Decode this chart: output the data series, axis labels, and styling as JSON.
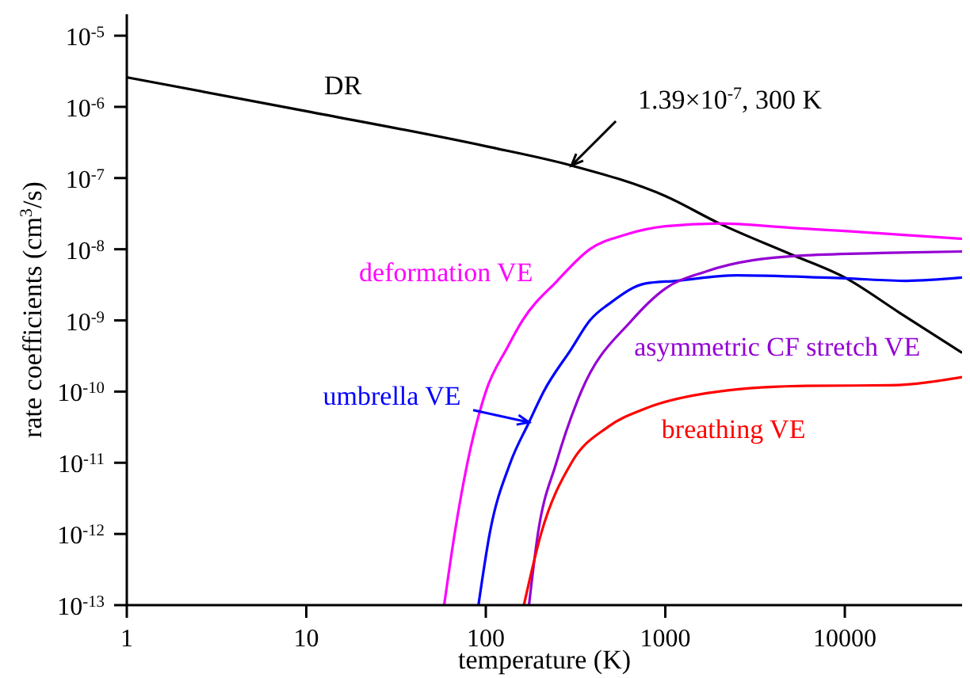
{
  "chart_data": {
    "type": "line",
    "xlabel": "temperature (K)",
    "ylabel": "rate coefficients (cm$^{3}$/s)",
    "log": "xy",
    "marker": "none",
    "line_style": "solid",
    "xlim": [
      1,
      45000
    ],
    "xticks": [
      1,
      10,
      100,
      1000,
      10000
    ],
    "ylim": [
      1e-13,
      2e-05
    ],
    "yticks": [
      {
        "value": 1e-13,
        "label": "10$^{-13}$"
      },
      {
        "value": 1e-12,
        "label": "10$^{-12}$"
      },
      {
        "value": 1e-11,
        "label": "10$^{-11}$"
      },
      {
        "value": 1e-10,
        "label": "10$^{-10}$"
      },
      {
        "value": 1e-09,
        "label": "10$^{-9}$"
      },
      {
        "value": 1e-08,
        "label": "10$^{-8}$"
      },
      {
        "value": 1e-07,
        "label": "10$^{-7}$"
      },
      {
        "value": 1e-06,
        "label": "10$^{-6}$"
      },
      {
        "value": 1e-05,
        "label": "10$^{-5}$"
      }
    ],
    "series": [
      {
        "name": "DR",
        "color": "#000000",
        "x": [
          1,
          10,
          100,
          300,
          1000,
          2000,
          5000,
          10000,
          20000,
          45000
        ],
        "values": [
          2.6e-06,
          8.7e-07,
          2.8e-07,
          1.5e-07,
          5.6e-08,
          2.3e-08,
          8.5e-09,
          4e-09,
          1.3e-09,
          3.5e-10
        ]
      },
      {
        "name": "deformation VE",
        "color": "#ff00ff",
        "x": [
          58.6,
          67,
          79,
          100,
          132,
          160,
          250,
          380,
          600,
          1000,
          2000,
          5000,
          10000,
          45000
        ],
        "values": [
          1e-13,
          1e-12,
          1e-11,
          1e-10,
          4.2e-10,
          1e-09,
          3.6e-09,
          1e-08,
          1.6e-08,
          2.1e-08,
          2.3e-08,
          2e-08,
          1.8e-08,
          1.4e-08
        ]
      },
      {
        "name": "umbrella VE",
        "color": "#0000ff",
        "x": [
          91,
          105,
          137,
          174,
          210,
          300,
          380,
          500,
          775,
          1150,
          2500,
          10000,
          22000,
          45000
        ],
        "values": [
          1e-13,
          1e-12,
          1e-11,
          3.7e-11,
          1e-10,
          4e-10,
          1e-09,
          1.8e-09,
          3.3e-09,
          3.6e-09,
          4.3e-09,
          3.9e-09,
          3.6e-09,
          4e-09
        ]
      },
      {
        "name": "asymmetric CF stretch VE",
        "color": "#9400d3",
        "x": [
          174,
          195,
          247,
          340,
          650,
          1000,
          1700,
          5500,
          18000,
          45000
        ],
        "values": [
          1e-13,
          1e-12,
          1e-11,
          1e-10,
          1e-09,
          2.8e-09,
          4.9e-09,
          8.1e-09,
          8.9e-09,
          9.3e-09
        ]
      },
      {
        "name": "breathing VE",
        "color": "#ff0000",
        "x": [
          163,
          203,
          300,
          480,
          775,
          1700,
          5500,
          18000,
          45000
        ],
        "values": [
          1e-13,
          1e-12,
          1e-11,
          3.2e-11,
          5.8e-11,
          9.5e-11,
          1.2e-10,
          1.23e-10,
          1.6e-10
        ]
      }
    ],
    "annotations": [
      "1.39×10$^{-7}$, 300 K"
    ]
  }
}
